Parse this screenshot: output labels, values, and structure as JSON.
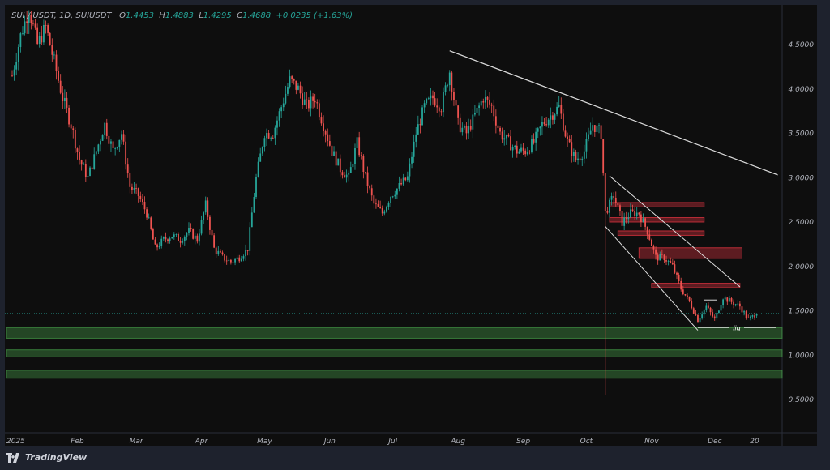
{
  "header": {
    "symbol": "SUI / USDT, 1D, SUIUSDT",
    "open_label": "O",
    "open": "1.4453",
    "high_label": "H",
    "high": "1.4883",
    "low_label": "L",
    "low": "1.4295",
    "close_label": "C",
    "close": "1.4688",
    "change": "+0.0235 (+1.63%)"
  },
  "footer": {
    "brand": "TradingView"
  },
  "colors": {
    "up": "#26a69a",
    "down": "#ef5350",
    "background": "#0e0e0e",
    "support_zone": "#4caf50",
    "resistance_zone": "#f23645",
    "trendline": "#e0e0e0"
  },
  "chart_data": {
    "type": "candlestick",
    "title": "",
    "y_ticks": [
      "4.5000",
      "4.0000",
      "3.5000",
      "3.0000",
      "2.5000",
      "2.0000",
      "1.5000",
      "1.0000",
      "0.5000"
    ],
    "y_tick_values": [
      4.5,
      4.0,
      3.5,
      3.0,
      2.5,
      2.0,
      1.5,
      1.0,
      0.5
    ],
    "ylim": [
      0.3,
      4.97
    ],
    "x_ticks": [
      "2025",
      "Feb",
      "Mar",
      "Apr",
      "May",
      "Jun",
      "Jul",
      "Aug",
      "Sep",
      "Oct",
      "Nov",
      "Dec",
      "20"
    ],
    "x_tick_dates": [
      "2025-01-01",
      "2025-02-01",
      "2025-03-01",
      "2025-04-01",
      "2025-05-01",
      "2025-06-01",
      "2025-07-01",
      "2025-08-01",
      "2025-09-01",
      "2025-10-01",
      "2025-11-01",
      "2025-12-01",
      "2025-12-20"
    ],
    "close_path": [
      [
        "2025-01-01",
        4.15
      ],
      [
        "2025-01-05",
        4.6
      ],
      [
        "2025-01-09",
        4.9
      ],
      [
        "2025-01-13",
        4.5
      ],
      [
        "2025-01-17",
        4.7
      ],
      [
        "2025-01-21",
        4.3
      ],
      [
        "2025-01-25",
        3.9
      ],
      [
        "2025-01-29",
        3.6
      ],
      [
        "2025-02-02",
        3.2
      ],
      [
        "2025-02-06",
        3.0
      ],
      [
        "2025-02-10",
        3.3
      ],
      [
        "2025-02-14",
        3.6
      ],
      [
        "2025-02-18",
        3.3
      ],
      [
        "2025-02-22",
        3.5
      ],
      [
        "2025-02-26",
        2.9
      ],
      [
        "2025-03-02",
        2.8
      ],
      [
        "2025-03-06",
        2.6
      ],
      [
        "2025-03-10",
        2.2
      ],
      [
        "2025-03-14",
        2.3
      ],
      [
        "2025-03-18",
        2.35
      ],
      [
        "2025-03-22",
        2.3
      ],
      [
        "2025-03-26",
        2.4
      ],
      [
        "2025-03-30",
        2.3
      ],
      [
        "2025-04-03",
        2.7
      ],
      [
        "2025-04-07",
        2.2
      ],
      [
        "2025-04-11",
        2.1
      ],
      [
        "2025-04-15",
        2.05
      ],
      [
        "2025-04-19",
        2.1
      ],
      [
        "2025-04-23",
        2.2
      ],
      [
        "2025-04-27",
        3.0
      ],
      [
        "2025-05-01",
        3.5
      ],
      [
        "2025-05-05",
        3.5
      ],
      [
        "2025-05-09",
        3.8
      ],
      [
        "2025-05-13",
        4.1
      ],
      [
        "2025-05-17",
        4.0
      ],
      [
        "2025-05-21",
        3.8
      ],
      [
        "2025-05-25",
        3.9
      ],
      [
        "2025-05-29",
        3.6
      ],
      [
        "2025-06-02",
        3.3
      ],
      [
        "2025-06-06",
        3.1
      ],
      [
        "2025-06-10",
        3.0
      ],
      [
        "2025-06-14",
        3.4
      ],
      [
        "2025-06-18",
        3.0
      ],
      [
        "2025-06-22",
        2.7
      ],
      [
        "2025-06-26",
        2.6
      ],
      [
        "2025-06-30",
        2.8
      ],
      [
        "2025-07-04",
        2.9
      ],
      [
        "2025-07-08",
        3.0
      ],
      [
        "2025-07-12",
        3.5
      ],
      [
        "2025-07-16",
        3.8
      ],
      [
        "2025-07-20",
        3.9
      ],
      [
        "2025-07-24",
        3.8
      ],
      [
        "2025-07-28",
        4.2
      ],
      [
        "2025-08-01",
        3.6
      ],
      [
        "2025-08-05",
        3.5
      ],
      [
        "2025-08-09",
        3.7
      ],
      [
        "2025-08-13",
        3.9
      ],
      [
        "2025-08-17",
        3.8
      ],
      [
        "2025-08-21",
        3.5
      ],
      [
        "2025-08-25",
        3.4
      ],
      [
        "2025-08-29",
        3.3
      ],
      [
        "2025-09-02",
        3.3
      ],
      [
        "2025-09-06",
        3.4
      ],
      [
        "2025-09-10",
        3.6
      ],
      [
        "2025-09-14",
        3.7
      ],
      [
        "2025-09-18",
        3.8
      ],
      [
        "2025-09-22",
        3.4
      ],
      [
        "2025-09-26",
        3.2
      ],
      [
        "2025-09-30",
        3.3
      ],
      [
        "2025-10-04",
        3.6
      ],
      [
        "2025-10-08",
        3.5
      ],
      [
        "2025-10-10",
        2.6
      ],
      [
        "2025-10-14",
        2.8
      ],
      [
        "2025-10-18",
        2.5
      ],
      [
        "2025-10-22",
        2.6
      ],
      [
        "2025-10-26",
        2.6
      ],
      [
        "2025-10-30",
        2.4
      ],
      [
        "2025-11-03",
        2.1
      ],
      [
        "2025-11-07",
        2.1
      ],
      [
        "2025-11-11",
        2.0
      ],
      [
        "2025-11-15",
        1.75
      ],
      [
        "2025-11-19",
        1.6
      ],
      [
        "2025-11-23",
        1.4
      ],
      [
        "2025-11-27",
        1.55
      ],
      [
        "2025-12-01",
        1.4
      ],
      [
        "2025-12-05",
        1.65
      ],
      [
        "2025-12-09",
        1.6
      ],
      [
        "2025-12-13",
        1.55
      ],
      [
        "2025-12-17",
        1.4
      ],
      [
        "2025-12-21",
        1.4688
      ]
    ],
    "crash_wick": {
      "date": "2025-10-10",
      "low": 0.55
    },
    "current_price": 1.4688,
    "drawings": {
      "trendline": [
        [
          "2025-07-28",
          4.43
        ],
        [
          "2025-12-31",
          3.03
        ]
      ],
      "wedge_upper": [
        [
          "2025-10-12",
          3.02
        ],
        [
          "2025-12-13",
          1.77
        ]
      ],
      "wedge_lower": [
        [
          "2025-10-10",
          2.45
        ],
        [
          "2025-11-23",
          1.28
        ]
      ],
      "liq_line": {
        "from": "2025-11-23",
        "to": "2025-12-30",
        "price": 1.31,
        "label": "liq"
      },
      "range_box_top": {
        "from": "2025-11-26",
        "to": "2025-12-02",
        "price": 1.62
      },
      "resistance_zones": [
        {
          "from": "2025-10-12",
          "to": "2025-11-26",
          "top": 2.72,
          "bottom": 2.67
        },
        {
          "from": "2025-10-12",
          "to": "2025-11-26",
          "top": 2.55,
          "bottom": 2.5
        },
        {
          "from": "2025-10-16",
          "to": "2025-11-26",
          "top": 2.4,
          "bottom": 2.35
        },
        {
          "from": "2025-10-26",
          "to": "2025-12-14",
          "top": 2.21,
          "bottom": 2.09
        },
        {
          "from": "2025-11-01",
          "to": "2025-12-13",
          "top": 1.81,
          "bottom": 1.76
        }
      ],
      "support_zones": [
        {
          "top": 1.31,
          "bottom": 1.19
        },
        {
          "top": 1.06,
          "bottom": 0.98
        },
        {
          "top": 0.83,
          "bottom": 0.74
        }
      ]
    }
  }
}
